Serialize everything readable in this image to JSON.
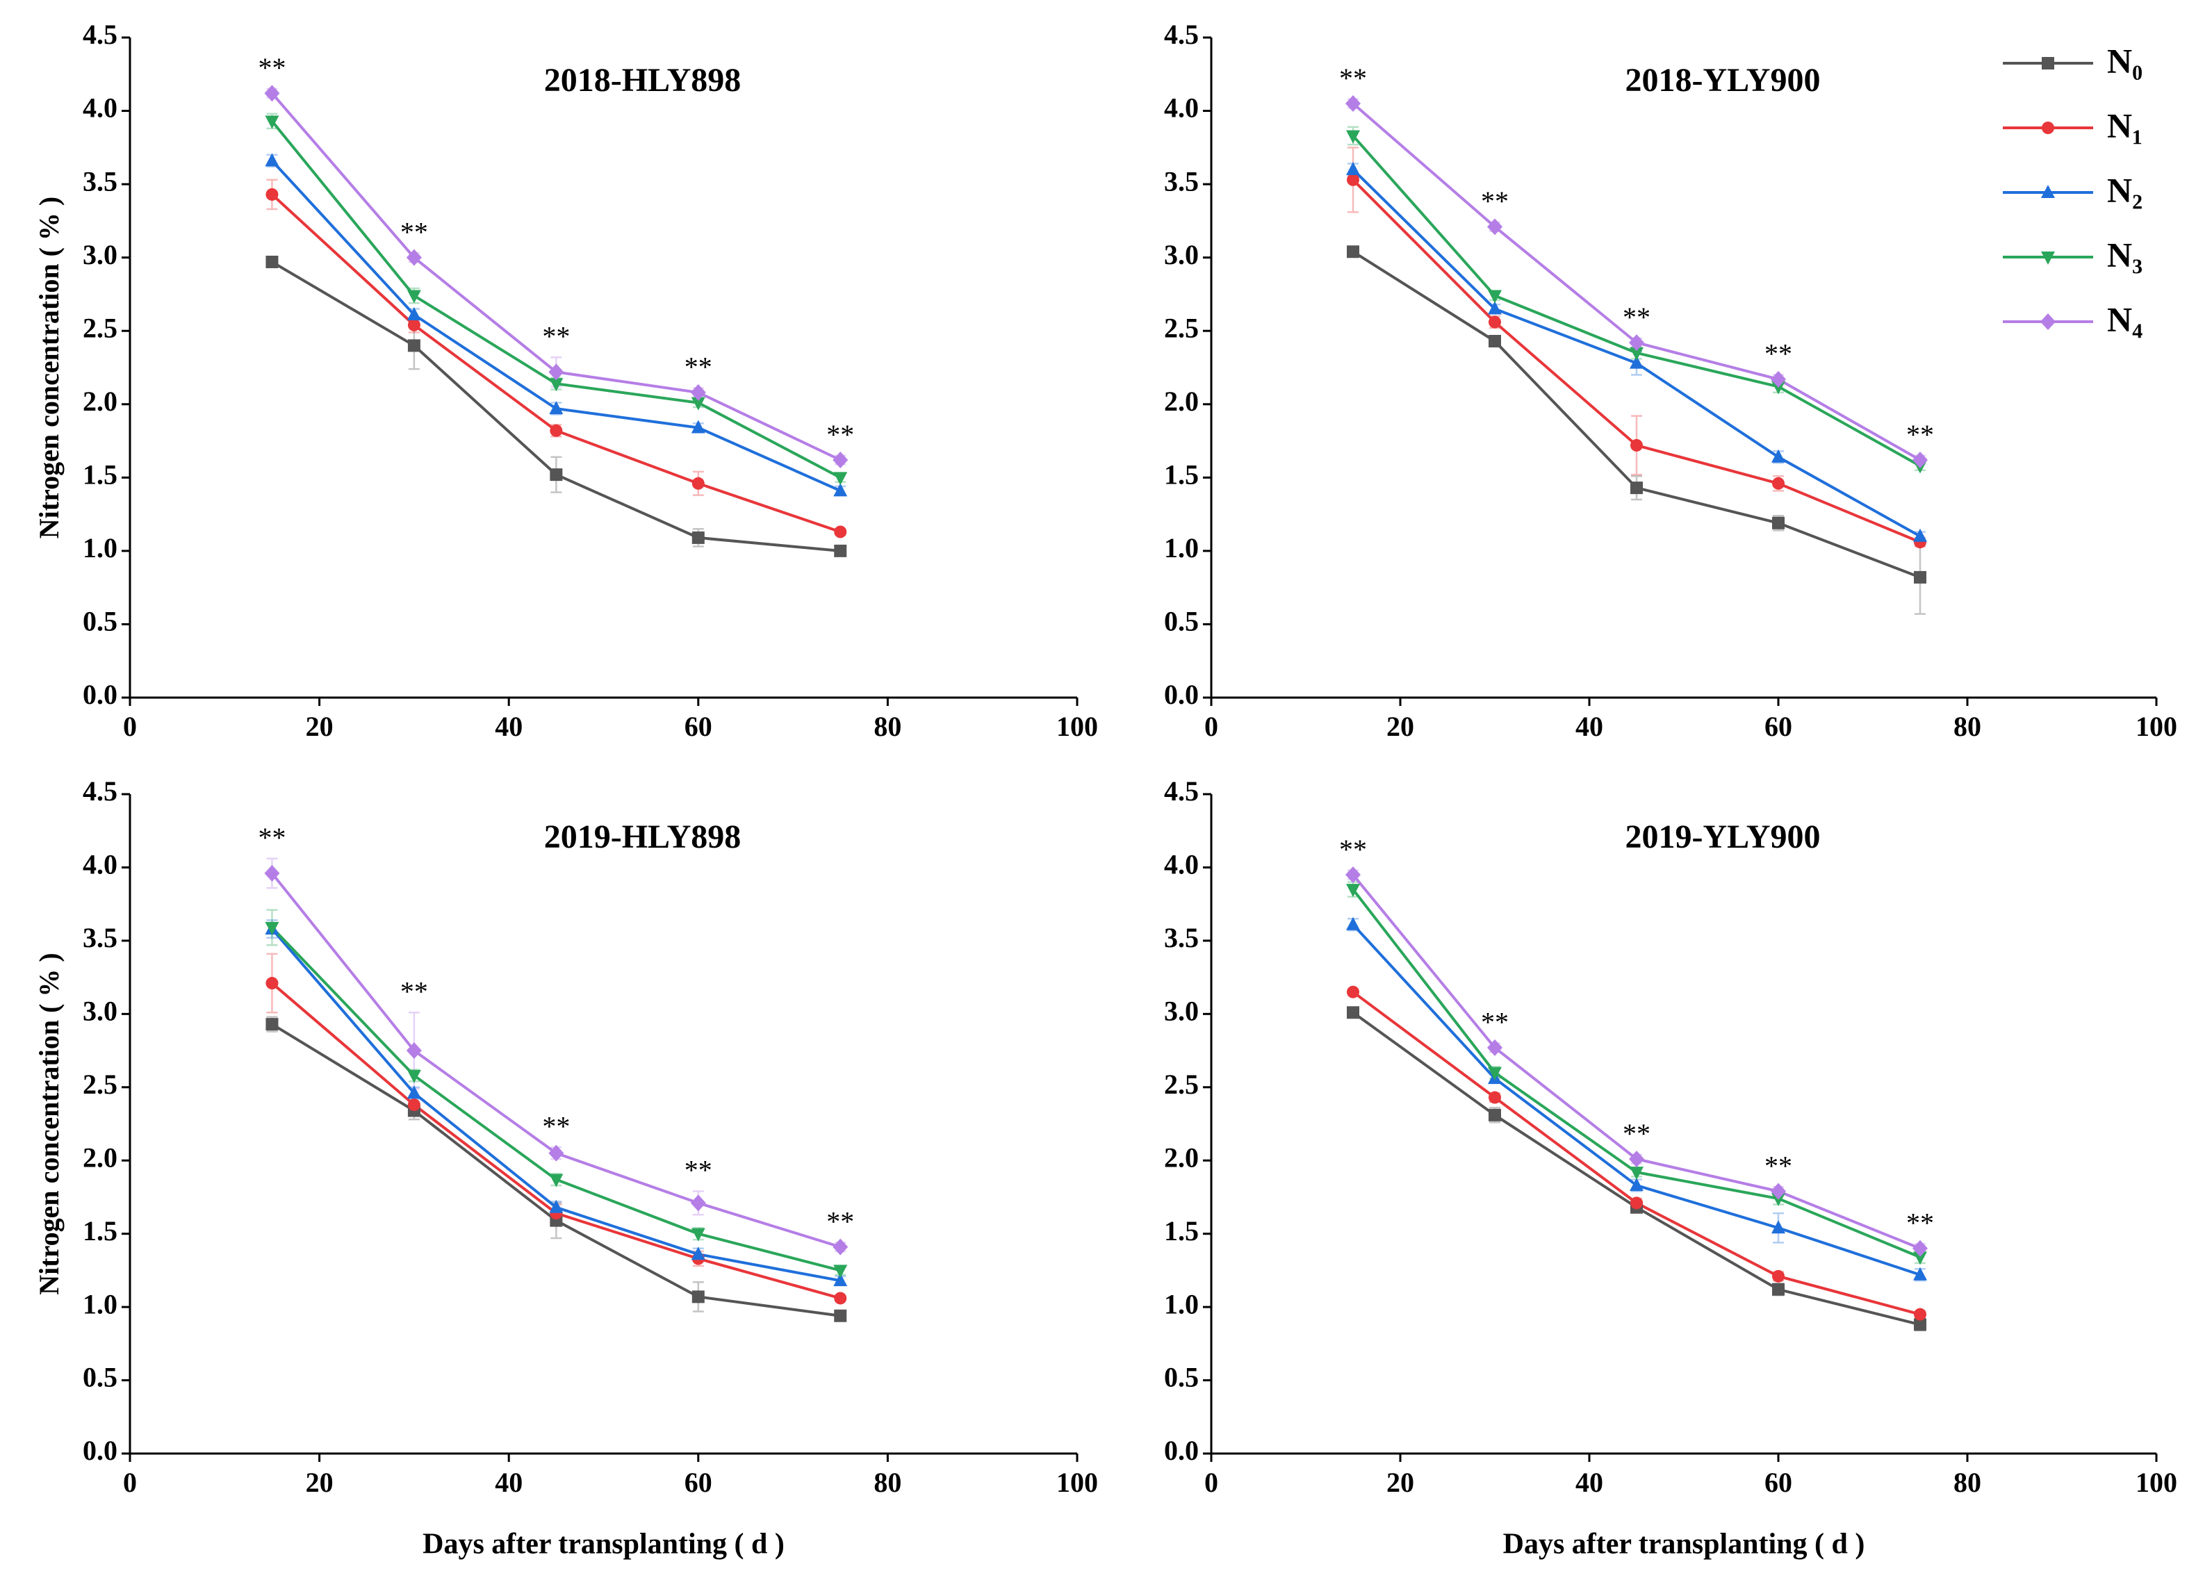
{
  "chart_data": [
    {
      "type": "line",
      "title": "2018-HLY898",
      "y_label": "Nitrogen concentration ( % )",
      "x": [
        15,
        30,
        45,
        60,
        75
      ],
      "xlim": [
        0,
        100
      ],
      "xticks": [
        0,
        20,
        40,
        60,
        80,
        100
      ],
      "ylim": [
        0,
        4.5
      ],
      "yticks": [
        {
          "value": 0,
          "label": "0.0"
        },
        0.5,
        {
          "value": 1,
          "label": "1.0"
        },
        1.5,
        {
          "value": 2,
          "label": "2.0"
        },
        2.5,
        {
          "value": 3,
          "label": "3.0"
        },
        3.5,
        {
          "value": 4,
          "label": "4.0"
        },
        4.5
      ],
      "significance": [
        "**",
        "**",
        "**",
        "**",
        "**"
      ],
      "series": [
        {
          "color": "#555555",
          "marker": "square",
          "values": [
            2.97,
            2.4,
            1.52,
            1.09,
            1.0
          ],
          "errors": [
            0.02,
            0.16,
            0.12,
            0.06,
            0.02
          ]
        },
        {
          "color": "#e8363a",
          "marker": "circle",
          "values": [
            3.43,
            2.54,
            1.82,
            1.46,
            1.13
          ],
          "errors": [
            0.1,
            0.05,
            0.04,
            0.08,
            0.02
          ]
        },
        {
          "color": "#1f6fdb",
          "marker": "triangle-up",
          "values": [
            3.66,
            2.61,
            1.97,
            1.84,
            1.41
          ],
          "errors": [
            0.04,
            0.04,
            0.04,
            0.03,
            0.03
          ]
        },
        {
          "color": "#2aa65a",
          "marker": "triangle-down",
          "values": [
            3.93,
            2.74,
            2.14,
            2.01,
            1.5
          ],
          "errors": [
            0.05,
            0.05,
            0.04,
            0.03,
            0.03
          ]
        },
        {
          "color": "#b57ee6",
          "marker": "diamond",
          "values": [
            4.12,
            3.0,
            2.22,
            2.08,
            1.62
          ],
          "errors": [
            0.03,
            0.03,
            0.1,
            0.03,
            0.03
          ]
        }
      ]
    },
    {
      "type": "line",
      "title": "2018-YLY900",
      "legend": "upper right",
      "x": [
        15,
        30,
        45,
        60,
        75
      ],
      "xlim": [
        0,
        100
      ],
      "xticks": [
        0,
        20,
        40,
        60,
        80,
        100
      ],
      "ylim": [
        0,
        4.5
      ],
      "yticks": [
        {
          "value": 0,
          "label": "0.0"
        },
        0.5,
        {
          "value": 1,
          "label": "1.0"
        },
        1.5,
        {
          "value": 2,
          "label": "2.0"
        },
        2.5,
        {
          "value": 3,
          "label": "3.0"
        },
        3.5,
        {
          "value": 4,
          "label": "4.0"
        },
        4.5
      ],
      "significance": [
        "**",
        "**",
        "**",
        "**",
        "**"
      ],
      "series": [
        {
          "name": "N₀",
          "color": "#555555",
          "marker": "square",
          "values": [
            3.04,
            2.43,
            1.43,
            1.19,
            0.82
          ],
          "errors": [
            0.02,
            0.03,
            0.08,
            0.05,
            0.25
          ]
        },
        {
          "name": "N₁",
          "color": "#e8363a",
          "marker": "circle",
          "values": [
            3.53,
            2.56,
            1.72,
            1.46,
            1.06
          ],
          "errors": [
            0.22,
            0.04,
            0.2,
            0.05,
            0.03
          ]
        },
        {
          "name": "N₂",
          "color": "#1f6fdb",
          "marker": "triangle-up",
          "values": [
            3.6,
            2.65,
            2.28,
            1.64,
            1.1
          ],
          "errors": [
            0.04,
            0.03,
            0.08,
            0.04,
            0.03
          ]
        },
        {
          "name": "N₃",
          "color": "#2aa65a",
          "marker": "triangle-down",
          "values": [
            3.83,
            2.74,
            2.35,
            2.12,
            1.58
          ],
          "errors": [
            0.06,
            0.03,
            0.04,
            0.04,
            0.03
          ]
        },
        {
          "name": "N₄",
          "color": "#b57ee6",
          "marker": "diamond",
          "values": [
            4.05,
            3.21,
            2.42,
            2.17,
            1.62
          ],
          "errors": [
            0.03,
            0.03,
            0.03,
            0.03,
            0.03
          ]
        }
      ]
    },
    {
      "type": "line",
      "title": "2019-HLY898",
      "y_label": "Nitrogen concentration ( % )",
      "x_label": "Days after transplanting ( d )",
      "x": [
        15,
        30,
        45,
        60,
        75
      ],
      "xlim": [
        0,
        100
      ],
      "xticks": [
        0,
        20,
        40,
        60,
        80,
        100
      ],
      "ylim": [
        0,
        4.5
      ],
      "yticks": [
        {
          "value": 0,
          "label": "0.0"
        },
        0.5,
        {
          "value": 1,
          "label": "1.0"
        },
        1.5,
        {
          "value": 2,
          "label": "2.0"
        },
        2.5,
        {
          "value": 3,
          "label": "3.0"
        },
        3.5,
        {
          "value": 4,
          "label": "4.0"
        },
        4.5
      ],
      "significance": [
        "**",
        "**",
        "**",
        "**",
        "**"
      ],
      "series": [
        {
          "color": "#555555",
          "marker": "square",
          "values": [
            2.93,
            2.34,
            1.59,
            1.07,
            0.94
          ],
          "errors": [
            0.05,
            0.06,
            0.12,
            0.1,
            0.02
          ]
        },
        {
          "color": "#e8363a",
          "marker": "circle",
          "values": [
            3.21,
            2.38,
            1.64,
            1.33,
            1.06
          ],
          "errors": [
            0.2,
            0.06,
            0.06,
            0.05,
            0.02
          ]
        },
        {
          "color": "#1f6fdb",
          "marker": "triangle-up",
          "values": [
            3.58,
            2.46,
            1.68,
            1.36,
            1.18
          ],
          "errors": [
            0.06,
            0.04,
            0.04,
            0.04,
            0.03
          ]
        },
        {
          "color": "#2aa65a",
          "marker": "triangle-down",
          "values": [
            3.59,
            2.58,
            1.87,
            1.5,
            1.25
          ],
          "errors": [
            0.12,
            0.04,
            0.04,
            0.04,
            0.03
          ]
        },
        {
          "color": "#b57ee6",
          "marker": "diamond",
          "values": [
            3.96,
            2.75,
            2.05,
            1.71,
            1.41
          ],
          "errors": [
            0.1,
            0.26,
            0.04,
            0.08,
            0.03
          ]
        }
      ]
    },
    {
      "type": "line",
      "title": "2019-YLY900",
      "x_label": "Days after transplanting ( d )",
      "x": [
        15,
        30,
        45,
        60,
        75
      ],
      "xlim": [
        0,
        100
      ],
      "xticks": [
        0,
        20,
        40,
        60,
        80,
        100
      ],
      "ylim": [
        0,
        4.5
      ],
      "yticks": [
        {
          "value": 0,
          "label": "0.0"
        },
        0.5,
        {
          "value": 1,
          "label": "1.0"
        },
        1.5,
        {
          "value": 2,
          "label": "2.0"
        },
        2.5,
        {
          "value": 3,
          "label": "3.0"
        },
        3.5,
        {
          "value": 4,
          "label": "4.0"
        },
        4.5
      ],
      "significance": [
        "**",
        "**",
        "**",
        "**",
        "**"
      ],
      "series": [
        {
          "color": "#555555",
          "marker": "square",
          "values": [
            3.01,
            2.31,
            1.68,
            1.12,
            0.88
          ],
          "errors": [
            0.02,
            0.05,
            0.03,
            0.04,
            0.04
          ]
        },
        {
          "color": "#e8363a",
          "marker": "circle",
          "values": [
            3.15,
            2.43,
            1.71,
            1.21,
            0.95
          ],
          "errors": [
            0.02,
            0.03,
            0.03,
            0.03,
            0.02
          ]
        },
        {
          "color": "#1f6fdb",
          "marker": "triangle-up",
          "values": [
            3.61,
            2.56,
            1.83,
            1.54,
            1.22
          ],
          "errors": [
            0.04,
            0.03,
            0.04,
            0.1,
            0.04
          ]
        },
        {
          "color": "#2aa65a",
          "marker": "triangle-down",
          "values": [
            3.85,
            2.6,
            1.92,
            1.74,
            1.34
          ],
          "errors": [
            0.05,
            0.04,
            0.03,
            0.04,
            0.04
          ]
        },
        {
          "color": "#b57ee6",
          "marker": "diamond",
          "values": [
            3.95,
            2.77,
            2.01,
            1.79,
            1.4
          ],
          "errors": [
            0.03,
            0.03,
            0.03,
            0.03,
            0.03
          ]
        }
      ]
    }
  ]
}
